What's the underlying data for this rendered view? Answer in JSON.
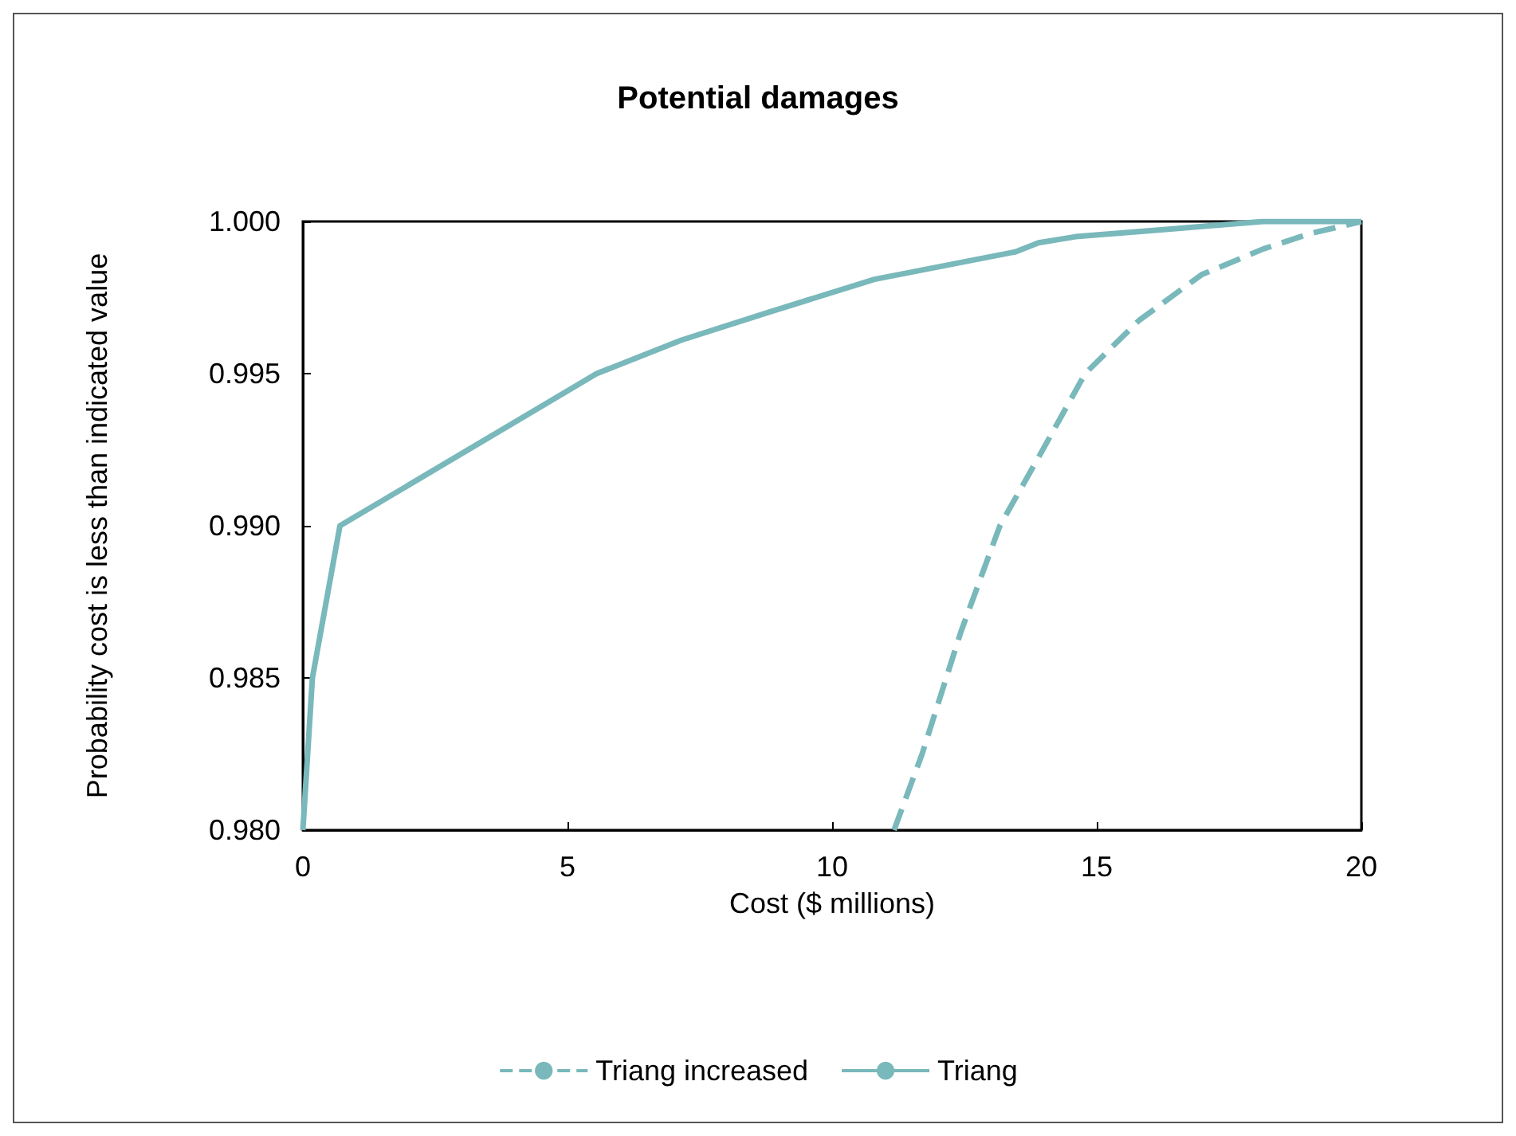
{
  "chart_data": {
    "type": "line",
    "title": "Potential damages",
    "xlabel": "Cost ($ millions)",
    "ylabel": "Probability cost is less than indicated value",
    "xlim": [
      0,
      20
    ],
    "xticks": [
      0,
      5,
      10,
      15,
      20
    ],
    "ylim": [
      0.98,
      1.0
    ],
    "yticks": [
      {
        "value": 0.98,
        "label": "0.980"
      },
      {
        "value": 0.985,
        "label": "0.985"
      },
      {
        "value": 0.99,
        "label": "0.990"
      },
      {
        "value": 0.995,
        "label": "0.995"
      },
      {
        "value": 1.0,
        "label": "1.000"
      }
    ],
    "grid": false,
    "legend": "bottom",
    "marker": "none",
    "series": [
      {
        "name": "Triang increased",
        "color": "#79b8bb",
        "line_style": "dashed",
        "x": [
          11.17,
          11.7,
          12.43,
          13.17,
          13.9,
          14.78,
          15.8,
          16.98,
          18.15,
          19.03,
          20
        ],
        "values": [
          0.98,
          0.9825,
          0.9865,
          0.99,
          0.99225,
          0.995,
          0.99675,
          0.99825,
          0.9991,
          0.9996,
          1.0
        ]
      },
      {
        "name": "Triang",
        "color": "#79b8bb",
        "line_style": "solid",
        "x": [
          0,
          0.18,
          0.7,
          5.55,
          7.15,
          8.77,
          10.8,
          13.46,
          13.9,
          14.6,
          16.4,
          18.15,
          20
        ],
        "values": [
          0.98,
          0.985,
          0.99,
          0.995,
          0.9961,
          0.997,
          0.9981,
          0.999,
          0.9993,
          0.9995,
          0.99975,
          1.0,
          1.0
        ]
      }
    ]
  }
}
